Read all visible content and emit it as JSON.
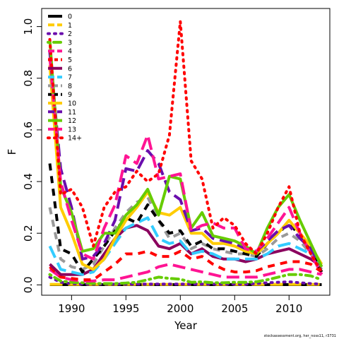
{
  "chart_data": {
    "type": "line",
    "title": "",
    "xlabel": "Year",
    "ylabel": "F",
    "xlim": [
      1987.25,
      2013.75
    ],
    "ylim": [
      -0.04,
      1.07
    ],
    "x_ticks": [
      1990,
      1995,
      2000,
      2005,
      2010
    ],
    "y_ticks": [
      0.0,
      0.2,
      0.4,
      0.6,
      0.8,
      1.0
    ],
    "y_tick_labels": [
      "0.0",
      "0.2",
      "0.4",
      "0.6",
      "0.8",
      "1.0"
    ],
    "grid": false,
    "legend_position": "top-left",
    "watermark": "stockassessment.org, her_noss11, r3731",
    "x": [
      1988,
      1989,
      1990,
      1991,
      1992,
      1993,
      1994,
      1995,
      1996,
      1997,
      1998,
      1999,
      2000,
      2001,
      2002,
      2003,
      2004,
      2005,
      2006,
      2007,
      2008,
      2009,
      2010,
      2011,
      2012,
      2013
    ],
    "series": [
      {
        "name": "0",
        "color": "#000000",
        "dash": "solid",
        "values": [
          0.001,
          0.001,
          0.001,
          0.001,
          0.001,
          0.001,
          0.001,
          0.001,
          0.001,
          0.001,
          0.001,
          0.001,
          0.001,
          0.001,
          0.001,
          0.001,
          0.001,
          0.001,
          0.001,
          0.001,
          0.001,
          0.001,
          0.001,
          0.001,
          0.001,
          0.001
        ]
      },
      {
        "name": "1",
        "color": "#FFCC00",
        "dash": "long",
        "values": [
          0.002,
          0.002,
          0.002,
          0.002,
          0.002,
          0.002,
          0.002,
          0.002,
          0.002,
          0.002,
          0.002,
          0.002,
          0.002,
          0.002,
          0.002,
          0.002,
          0.002,
          0.002,
          0.002,
          0.002,
          0.002,
          0.002,
          0.002,
          0.002,
          0.002,
          0.002
        ]
      },
      {
        "name": "2",
        "color": "#6A0DAD",
        "dash": "dot",
        "values": [
          0.03,
          0.01,
          0.005,
          0.003,
          0.003,
          0.003,
          0.003,
          0.003,
          0.003,
          0.003,
          0.003,
          0.003,
          0.003,
          0.003,
          0.003,
          0.003,
          0.003,
          0.003,
          0.003,
          0.005,
          0.008,
          0.01,
          0.012,
          0.008,
          0.005,
          0.003
        ]
      },
      {
        "name": "3",
        "color": "#66CC00",
        "dash": "dotdash",
        "values": [
          0.04,
          0.015,
          0.01,
          0.008,
          0.005,
          0.005,
          0.005,
          0.007,
          0.01,
          0.02,
          0.03,
          0.025,
          0.022,
          0.01,
          0.012,
          0.008,
          0.008,
          0.01,
          0.01,
          0.012,
          0.02,
          0.03,
          0.04,
          0.04,
          0.035,
          0.02
        ]
      },
      {
        "name": "4",
        "color": "#FF1493",
        "dash": "long",
        "values": [
          0.06,
          0.03,
          0.02,
          0.015,
          0.015,
          0.02,
          0.02,
          0.03,
          0.04,
          0.05,
          0.07,
          0.08,
          0.07,
          0.06,
          0.05,
          0.04,
          0.03,
          0.03,
          0.03,
          0.03,
          0.04,
          0.05,
          0.06,
          0.06,
          0.05,
          0.04
        ]
      },
      {
        "name": "5",
        "color": "#FF0000",
        "dash": "dash",
        "values": [
          0.07,
          0.03,
          0.025,
          0.02,
          0.02,
          0.05,
          0.08,
          0.12,
          0.12,
          0.13,
          0.11,
          0.11,
          0.13,
          0.1,
          0.11,
          0.08,
          0.06,
          0.05,
          0.05,
          0.055,
          0.07,
          0.08,
          0.09,
          0.09,
          0.08,
          0.05
        ]
      },
      {
        "name": "6",
        "color": "#8B005E",
        "dash": "solid",
        "values": [
          0.08,
          0.04,
          0.04,
          0.04,
          0.06,
          0.12,
          0.18,
          0.22,
          0.23,
          0.21,
          0.15,
          0.14,
          0.16,
          0.12,
          0.14,
          0.11,
          0.1,
          0.1,
          0.09,
          0.1,
          0.12,
          0.13,
          0.14,
          0.12,
          0.1,
          0.07
        ]
      },
      {
        "name": "7",
        "color": "#33CCFF",
        "dash": "long",
        "values": [
          0.15,
          0.06,
          0.05,
          0.04,
          0.05,
          0.1,
          0.16,
          0.22,
          0.24,
          0.26,
          0.18,
          0.16,
          0.17,
          0.12,
          0.13,
          0.12,
          0.1,
          0.1,
          0.1,
          0.1,
          0.12,
          0.15,
          0.16,
          0.14,
          0.12,
          0.07
        ]
      },
      {
        "name": "8",
        "color": "#999999",
        "dash": "dash",
        "values": [
          0.3,
          0.1,
          0.07,
          0.06,
          0.08,
          0.15,
          0.22,
          0.28,
          0.32,
          0.34,
          0.25,
          0.18,
          0.2,
          0.14,
          0.16,
          0.14,
          0.13,
          0.12,
          0.12,
          0.11,
          0.14,
          0.18,
          0.2,
          0.17,
          0.12,
          0.06
        ]
      },
      {
        "name": "9",
        "color": "#000000",
        "dash": "dash",
        "values": [
          0.47,
          0.14,
          0.12,
          0.05,
          0.1,
          0.15,
          0.21,
          0.26,
          0.24,
          0.31,
          0.25,
          0.2,
          0.21,
          0.15,
          0.17,
          0.14,
          0.14,
          0.13,
          0.12,
          0.11,
          0.16,
          0.2,
          0.24,
          0.19,
          0.13,
          0.05
        ]
      },
      {
        "name": "10",
        "color": "#FFCC00",
        "dash": "solid",
        "values": [
          0.85,
          0.3,
          0.2,
          0.08,
          0.06,
          0.1,
          0.18,
          0.25,
          0.3,
          0.36,
          0.28,
          0.27,
          0.3,
          0.2,
          0.2,
          0.16,
          0.16,
          0.15,
          0.13,
          0.12,
          0.16,
          0.2,
          0.25,
          0.2,
          0.15,
          0.08
        ]
      },
      {
        "name": "11",
        "color": "#6A0DAD",
        "dash": "long",
        "values": [
          0.9,
          0.45,
          0.3,
          0.1,
          0.11,
          0.16,
          0.25,
          0.45,
          0.44,
          0.52,
          0.47,
          0.36,
          0.33,
          0.21,
          0.22,
          0.18,
          0.17,
          0.16,
          0.14,
          0.13,
          0.17,
          0.21,
          0.23,
          0.18,
          0.14,
          0.07
        ]
      },
      {
        "name": "12",
        "color": "#66CC00",
        "dash": "solid",
        "values": [
          0.95,
          0.38,
          0.28,
          0.13,
          0.14,
          0.2,
          0.2,
          0.27,
          0.31,
          0.37,
          0.27,
          0.42,
          0.41,
          0.22,
          0.28,
          0.19,
          0.18,
          0.17,
          0.15,
          0.12,
          0.22,
          0.3,
          0.35,
          0.25,
          0.16,
          0.07
        ]
      },
      {
        "name": "13",
        "color": "#FF1493",
        "dash": "long",
        "values": [
          0.88,
          0.4,
          0.25,
          0.12,
          0.1,
          0.22,
          0.31,
          0.5,
          0.47,
          0.58,
          0.41,
          0.42,
          0.43,
          0.21,
          0.23,
          0.24,
          0.22,
          0.22,
          0.14,
          0.13,
          0.18,
          0.24,
          0.3,
          0.2,
          0.12,
          0.04
        ]
      },
      {
        "name": "14+",
        "color": "#FF0000",
        "dash": "dot",
        "values": [
          0.95,
          0.35,
          0.37,
          0.3,
          0.15,
          0.3,
          0.36,
          0.38,
          0.44,
          0.4,
          0.43,
          0.58,
          1.02,
          0.48,
          0.41,
          0.22,
          0.26,
          0.23,
          0.16,
          0.12,
          0.2,
          0.3,
          0.38,
          0.2,
          0.12,
          0.05
        ]
      }
    ]
  }
}
